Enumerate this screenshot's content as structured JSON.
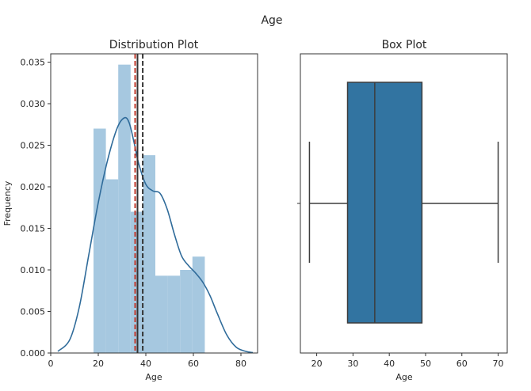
{
  "figure": {
    "suptitle": "Age"
  },
  "chart_data": [
    {
      "type": "bar",
      "title": "Distribution Plot",
      "xlabel": "Age",
      "ylabel": "Frequency",
      "xlim": [
        0,
        87
      ],
      "ylim": [
        0,
        0.036
      ],
      "xticks": [
        0,
        20,
        40,
        60,
        80
      ],
      "yticks": [
        0.0,
        0.005,
        0.01,
        0.015,
        0.02,
        0.025,
        0.03,
        0.035
      ],
      "ytick_labels": [
        "0.000",
        "0.005",
        "0.010",
        "0.015",
        "0.020",
        "0.025",
        "0.030",
        "0.035"
      ],
      "histogram": {
        "bin_edges": [
          18,
          23.2,
          28.4,
          33.6,
          38.8,
          44,
          49.2,
          54.4,
          59.6,
          64.8,
          70
        ],
        "values": [
          0.027,
          0.0209,
          0.0347,
          0.017,
          0.0238,
          0.0093,
          0.0093,
          0.01,
          0.0116,
          0.0
        ],
        "color": "#a6c8e0"
      },
      "kde": {
        "x": [
          3,
          8,
          12,
          16,
          20,
          24,
          28,
          31,
          33,
          35,
          37,
          40,
          43,
          46,
          49,
          52,
          55,
          58,
          61,
          64,
          67,
          70,
          74,
          78,
          82,
          85
        ],
        "y": [
          0.0002,
          0.0016,
          0.0055,
          0.0118,
          0.0181,
          0.0233,
          0.0271,
          0.0283,
          0.0277,
          0.0254,
          0.0228,
          0.0203,
          0.0195,
          0.0192,
          0.0173,
          0.0143,
          0.0117,
          0.0105,
          0.0096,
          0.0085,
          0.0069,
          0.0048,
          0.0022,
          0.0007,
          0.0002,
          5e-05
        ],
        "color": "#2f6b9a"
      },
      "vlines": [
        {
          "x": 35.5,
          "color": "#c0392b",
          "style": "dashed"
        },
        {
          "x": 36.5,
          "color": "#333333",
          "style": "solid"
        },
        {
          "x": 38.7,
          "color": "#333333",
          "style": "dashed"
        }
      ]
    },
    {
      "type": "box",
      "title": "Box Plot",
      "xlabel": "Age",
      "xlim": [
        15.5,
        72.5
      ],
      "xticks": [
        20,
        30,
        40,
        50,
        60,
        70
      ],
      "box": {
        "whisker_low": 18,
        "q1": 28.5,
        "median": 36,
        "q3": 49,
        "whisker_high": 70
      },
      "color": "#3274a1"
    }
  ]
}
